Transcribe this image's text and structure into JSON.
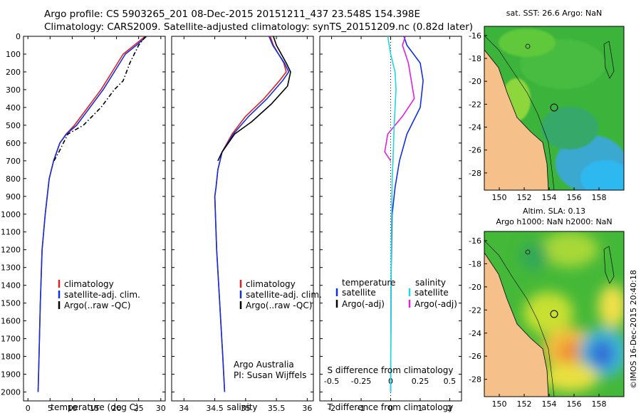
{
  "header": {
    "line1": "Argo profile: CS 5903265_201 08-Dec-2015 20151211_437 23.548S 154.398E",
    "line2": "Climatology: CARS2009. Satellite-adjusted climatology: synTS_20151209.nc (0.82d later)"
  },
  "credit": "Argo Australia",
  "pi": "PI: Susan Wijffels",
  "stamp": "©IMOS 16-Dec-2015 20:40:18",
  "map_top_title": "sat. SST: 26.6 Argo: NaN",
  "map_bottom_title1": "Altim. SLA: 0.13",
  "map_bottom_title2": "Argo h1000: NaN h2000: NaN",
  "colors": {
    "climatology": "#e02020",
    "satellite": "#1030e0",
    "argo": "#000000",
    "sal_sat": "#20d8e0",
    "sal_argo": "#e020e0",
    "land": "#f6c08a"
  },
  "chart_data": [
    {
      "type": "line",
      "xlabel": "temperature (deg C)",
      "xlim": [
        -1,
        31
      ],
      "ylim": [
        2050,
        0
      ],
      "xticks": [
        "0",
        "5",
        "10",
        "15",
        "20",
        "25",
        "30"
      ],
      "yticks": [
        "0",
        "100",
        "200",
        "300",
        "400",
        "500",
        "600",
        "700",
        "800",
        "900",
        "1000",
        "1100",
        "1200",
        "1300",
        "1400",
        "1500",
        "1600",
        "1700",
        "1800",
        "1900",
        "2000"
      ],
      "legend": [
        "climatology",
        "satellite-adj. clim.",
        "Argo(..raw -QC)"
      ],
      "series": [
        {
          "name": "climatology",
          "color": "#e02020",
          "dash": "",
          "x": [
            26.5,
            24,
            21.5,
            19,
            16.5,
            13.5,
            10.5,
            8.6,
            7.2,
            5.8,
            4.8,
            3.9,
            3.2,
            2.8,
            2.5,
            2.3
          ],
          "y": [
            0,
            50,
            100,
            200,
            300,
            400,
            500,
            550,
            600,
            700,
            800,
            1000,
            1200,
            1500,
            1800,
            2000
          ]
        },
        {
          "name": "satellite-adj. clim.",
          "color": "#1030e0",
          "dash": "",
          "x": [
            26.8,
            24.5,
            22,
            19.5,
            17,
            14,
            11,
            8.7,
            7.2,
            5.8,
            4.8,
            3.9,
            3.2,
            2.8,
            2.5,
            2.3
          ],
          "y": [
            0,
            50,
            100,
            200,
            300,
            400,
            500,
            550,
            600,
            700,
            800,
            1000,
            1200,
            1500,
            1800,
            2000
          ]
        },
        {
          "name": "Argo(..raw -QC)",
          "color": "#000000",
          "dash": "6,3,1.5,3",
          "x": [
            26.6,
            25,
            23,
            21.5,
            19.5,
            16.5,
            12.5,
            9,
            7,
            5.9
          ],
          "y": [
            0,
            50,
            150,
            250,
            300,
            400,
            500,
            550,
            650,
            700
          ]
        }
      ]
    },
    {
      "type": "line",
      "xlabel": "salinity",
      "xlim": [
        33.8,
        36.1
      ],
      "ylim": [
        2050,
        0
      ],
      "xticks": [
        "34",
        "34.5",
        "35",
        "35.5",
        "36"
      ],
      "legend": [
        "climatology",
        "satellite-adj. clim.",
        "Argo(..raw -QC)"
      ],
      "series": [
        {
          "name": "climatology",
          "color": "#e02020",
          "dash": "",
          "x": [
            35.4,
            35.45,
            35.62,
            35.66,
            35.55,
            35.3,
            35.0,
            34.78,
            34.62,
            34.55,
            34.52,
            34.5,
            34.53,
            34.58,
            34.63,
            34.66
          ],
          "y": [
            0,
            50,
            150,
            200,
            250,
            350,
            450,
            550,
            650,
            750,
            850,
            900,
            1200,
            1500,
            1800,
            2000
          ]
        },
        {
          "name": "satellite-adj. clim.",
          "color": "#1030e0",
          "dash": "",
          "x": [
            35.38,
            35.44,
            35.63,
            35.7,
            35.6,
            35.35,
            35.05,
            34.8,
            34.62,
            34.55,
            34.52,
            34.5,
            34.53,
            34.58,
            34.63,
            34.66
          ],
          "y": [
            0,
            50,
            150,
            200,
            250,
            350,
            450,
            550,
            650,
            750,
            850,
            900,
            1200,
            1500,
            1800,
            2000
          ]
        },
        {
          "name": "Argo(..raw -QC)",
          "color": "#000000",
          "dash": "",
          "x": [
            35.45,
            35.5,
            35.66,
            35.73,
            35.68,
            35.42,
            35.1,
            34.82,
            34.62,
            34.55
          ],
          "y": [
            0,
            50,
            150,
            200,
            280,
            380,
            480,
            550,
            650,
            700
          ]
        }
      ]
    },
    {
      "type": "line",
      "xlabel": "T difference from climatology",
      "xlabel2": "S difference from climatology",
      "xlim": [
        -2.4,
        2.4
      ],
      "ylim": [
        2050,
        0
      ],
      "xticks": [
        "-2",
        "-1",
        "0",
        "1",
        "2"
      ],
      "xticks2": [
        "-0.5",
        "-0.25",
        "0",
        "0.25",
        "0.5"
      ],
      "legend_title_t": "temperature",
      "legend_title_s": "salinity",
      "legend_t": [
        "satellite",
        "Argo(-adj)"
      ],
      "legend_s": [
        "satellite",
        "Argo(-adj)"
      ],
      "series": [
        {
          "name": "satellite",
          "color": "#1030e0",
          "dash": "",
          "x": [
            0.45,
            0.55,
            1.0,
            1.1,
            1.0,
            0.55,
            0.3,
            0.15,
            0.05,
            0.02,
            0.01,
            0.0
          ],
          "y": [
            0,
            50,
            150,
            250,
            400,
            550,
            700,
            850,
            1000,
            1300,
            1600,
            2000
          ]
        },
        {
          "name": "Argo(-adj)",
          "color": "#e020e0",
          "dash": "",
          "x": [
            0.5,
            0.4,
            0.6,
            0.75,
            0.8,
            0.4,
            -0.1,
            -0.2,
            0.0
          ],
          "y": [
            0,
            50,
            150,
            300,
            350,
            450,
            550,
            650,
            700
          ]
        },
        {
          "name": "satellite",
          "color": "#20d8e0",
          "dash": "",
          "x": [
            -0.1,
            0.0,
            0.15,
            0.18,
            0.15,
            0.12,
            0.1,
            0.08,
            0.05,
            0.02,
            0.0
          ],
          "y": [
            0,
            100,
            200,
            300,
            400,
            500,
            600,
            700,
            800,
            1200,
            2000
          ]
        }
      ]
    }
  ],
  "maps": [
    {
      "xticks": [
        "150",
        "152",
        "154",
        "156",
        "158"
      ],
      "yticks": [
        "-16",
        "-18",
        "-20",
        "-22",
        "-24",
        "-26",
        "-28"
      ]
    },
    {
      "xticks": [
        "150",
        "152",
        "154",
        "156",
        "158"
      ],
      "yticks": [
        "-16",
        "-18",
        "-20",
        "-22",
        "-24",
        "-26",
        "-28"
      ]
    }
  ]
}
